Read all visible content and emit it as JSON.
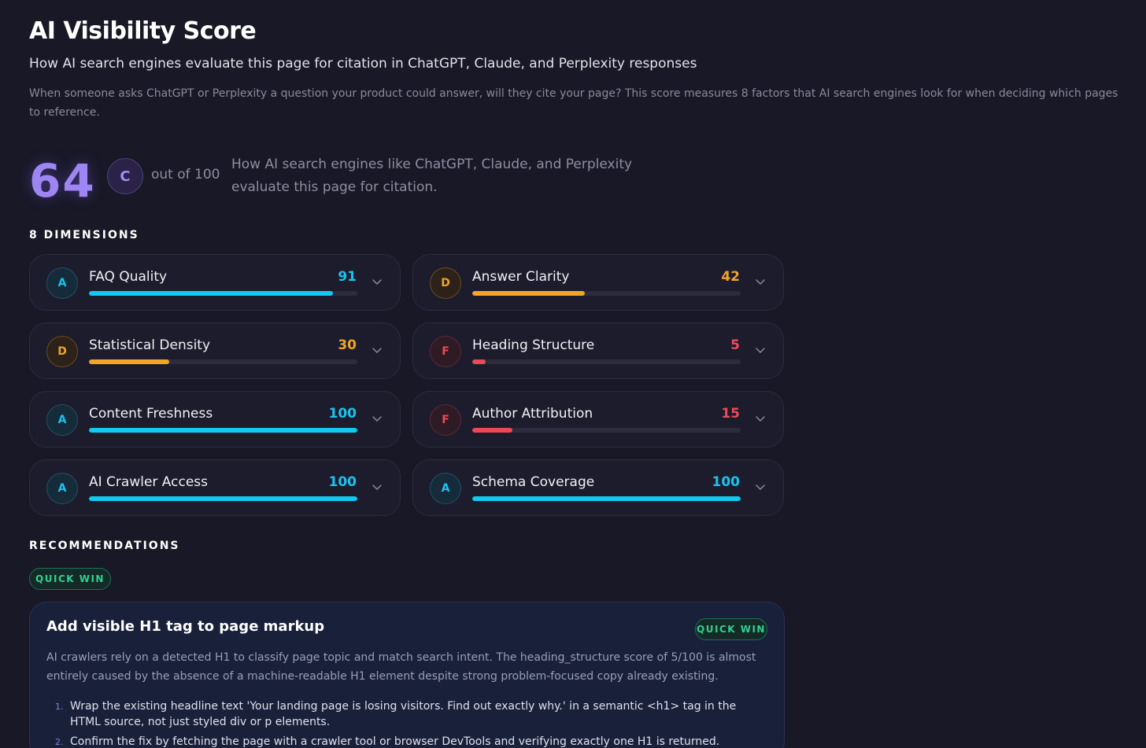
{
  "header": {
    "title": "AI Visibility Score",
    "subtitle": "How AI search engines evaluate this page for citation in ChatGPT, Claude, and Perplexity responses",
    "description": "When someone asks ChatGPT or Perplexity a question your product could answer, will they cite your page? This score measures 8 factors that AI search engines look for when deciding which pages to reference."
  },
  "score": {
    "value": "64",
    "grade": "C",
    "out_of": "out of 100",
    "description": "How AI search engines like ChatGPT, Claude, and Perplexity evaluate this page for citation."
  },
  "dimensions": {
    "heading": "8 DIMENSIONS",
    "items": [
      {
        "name": "FAQ Quality",
        "grade": "A",
        "score": "91",
        "fill": 0.91
      },
      {
        "name": "Answer Clarity",
        "grade": "D",
        "score": "42",
        "fill": 0.42
      },
      {
        "name": "Statistical Density",
        "grade": "D",
        "score": "30",
        "fill": 0.3
      },
      {
        "name": "Heading Structure",
        "grade": "F",
        "score": "5",
        "fill": 0.05
      },
      {
        "name": "Content Freshness",
        "grade": "A",
        "score": "100",
        "fill": 1.0
      },
      {
        "name": "Author Attribution",
        "grade": "F",
        "score": "15",
        "fill": 0.15
      },
      {
        "name": "AI Crawler Access",
        "grade": "A",
        "score": "100",
        "fill": 1.0
      },
      {
        "name": "Schema Coverage",
        "grade": "A",
        "score": "100",
        "fill": 1.0
      }
    ]
  },
  "recommendations": {
    "heading": "RECOMMENDATIONS",
    "filter_label": "QUICK WIN",
    "items": [
      {
        "title": "Add visible H1 tag to page markup",
        "badge": "QUICK WIN",
        "body": "AI crawlers rely on a detected H1 to classify page topic and match search intent. The heading_structure score of 5/100 is almost entirely caused by the absence of a machine-readable H1 element despite strong problem-focused copy already existing.",
        "steps": [
          {
            "num": "1.",
            "text": "Wrap the existing headline text 'Your landing page is losing visitors. Find out exactly why.' in a semantic <h1> tag in the HTML source, not just styled div or p elements."
          },
          {
            "num": "2.",
            "text": "Confirm the fix by fetching the page with a crawler tool or browser DevTools and verifying exactly one H1 is returned."
          }
        ]
      }
    ]
  },
  "colors": {
    "background": "#181826",
    "score_accent": "#9d86f2",
    "grade_a": "#19c4ee",
    "grade_d": "#f0a428",
    "grade_f": "#ee4a5a",
    "quick_win": "#2fd193"
  }
}
